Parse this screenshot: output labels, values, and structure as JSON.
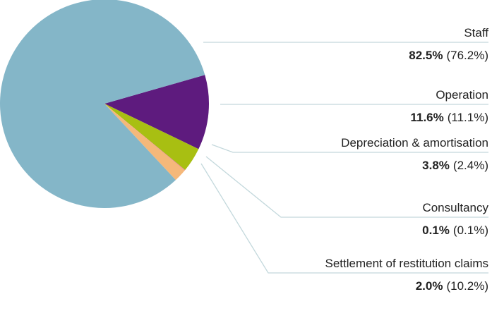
{
  "chart_data": {
    "type": "pie",
    "categories": [
      "Staff",
      "Operation",
      "Depreciation & amortisation",
      "Consultancy",
      "Settlement of restitution claims"
    ],
    "values": [
      82.5,
      11.6,
      3.8,
      0.1,
      2.0
    ],
    "value_labels": [
      "82.5%",
      "11.6%",
      "3.8%",
      "0.1%",
      "2.0%"
    ],
    "prior_value_labels": [
      "(76.2%)",
      "(11.1%)",
      "(2.4%)",
      "(0.1%)",
      "(10.2%)"
    ],
    "colors": [
      "#84b6c8",
      "#5e1b7e",
      "#a8bf12",
      "#e8828f",
      "#f5b87a"
    ]
  }
}
